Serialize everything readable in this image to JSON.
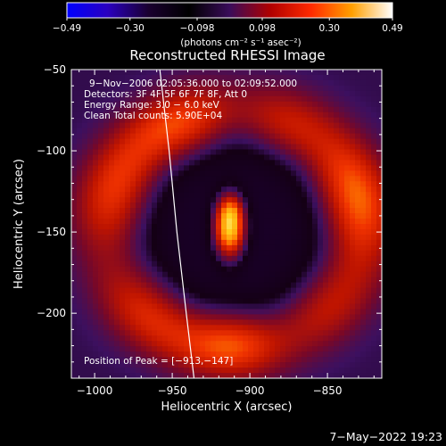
{
  "chart_data": {
    "type": "heatmap",
    "title": "Reconstructed RHESSI Image",
    "xlabel": "Heliocentric X (arcsec)",
    "ylabel": "Heliocentric Y (arcsec)",
    "xlim": [
      -1015,
      -815
    ],
    "ylim": [
      -240,
      -50
    ],
    "x_ticks": [
      -1000,
      -950,
      -900,
      -850
    ],
    "x_tick_labels": [
      "−1000",
      "−950",
      "−900",
      "−850"
    ],
    "y_ticks": [
      -50,
      -100,
      -150,
      -200
    ],
    "y_tick_labels": [
      "−50",
      "−100",
      "−150",
      "−200"
    ],
    "colorbar": {
      "min": -0.49,
      "max": 0.49,
      "ticks": [
        -0.49,
        -0.3,
        -0.098,
        0.098,
        0.3,
        0.49
      ],
      "tick_labels": [
        "−0.49",
        "−0.30",
        "−0.098",
        "0.098",
        "0.30",
        "0.49"
      ],
      "unit_label": "(photons cm⁻² s⁻¹ asec⁻²)",
      "colors": [
        "#0000ff",
        "#2a00c0",
        "#1a0030",
        "#000000",
        "#3a0c5a",
        "#b00000",
        "#ff2a00",
        "#ffa000",
        "#ffffff"
      ]
    },
    "info_lines": [
      "9−Nov−2006 02:05:36.000 to 02:09:52.000",
      "Detectors: 3F 4F 5F 6F 7F 8F, Att 0",
      "Energy Range: 3.0 − 6.0 keV",
      "Clean     Total counts: 5.90E+04"
    ],
    "peak": {
      "x": -913,
      "y": -147,
      "label": "Position of Peak = [−913,−147]"
    },
    "image_model": {
      "background": 0.03,
      "blobs": [
        {
          "x": -913,
          "y": -147,
          "sx": 7,
          "sy": 13,
          "amp": 0.46
        },
        {
          "x": -912,
          "y": -136,
          "sx": 5,
          "sy": 6,
          "amp": 0.08
        }
      ],
      "ring": {
        "cx": -910,
        "cy": -148,
        "rx": 82,
        "ry": 72,
        "width": 14,
        "amp": 0.22
      },
      "dark_disk": {
        "cx": -910,
        "cy": -148,
        "rx": 58,
        "ry": 54,
        "amp": -0.1
      }
    },
    "limb": [
      [
        -958,
        -50
      ],
      [
        -952,
        -100
      ],
      [
        -947,
        -150
      ],
      [
        -941,
        -200
      ],
      [
        -936,
        -240
      ]
    ],
    "date_stamp": "7−May−2022 19:23"
  }
}
